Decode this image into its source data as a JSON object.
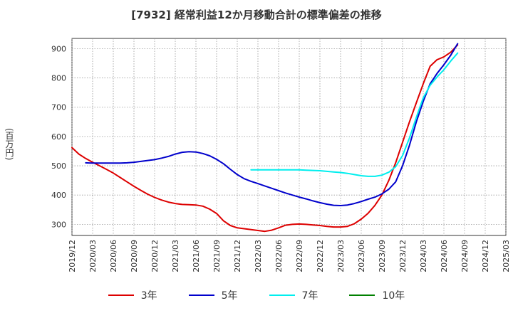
{
  "chart_data": {
    "type": "line",
    "title": "[7932]  経常利益12か月移動合計の標準偏差の推移",
    "ylabel": "(百万円)",
    "xlabel": "",
    "ylim": [
      262,
      935
    ],
    "yticks": [
      300,
      400,
      500,
      600,
      700,
      800,
      900
    ],
    "xticks": [
      "2019/12",
      "2020/03",
      "2020/06",
      "2020/09",
      "2020/12",
      "2021/03",
      "2021/06",
      "2021/09",
      "2021/12",
      "2022/03",
      "2022/06",
      "2022/09",
      "2022/12",
      "2023/03",
      "2023/06",
      "2023/09",
      "2023/12",
      "2024/03",
      "2024/06",
      "2024/09",
      "2024/12",
      "2025/03"
    ],
    "grid": true,
    "legend_position": "bottom",
    "series": [
      {
        "name": "3年",
        "color": "#dd0000",
        "start": "2019/12",
        "values": [
          562,
          540,
          525,
          512,
          500,
          488,
          475,
          460,
          445,
          430,
          416,
          403,
          392,
          383,
          376,
          371,
          368,
          367,
          366,
          362,
          352,
          337,
          312,
          296,
          288,
          285,
          282,
          279,
          276,
          280,
          288,
          297,
          300,
          301,
          300,
          298,
          296,
          293,
          291,
          291,
          293,
          302,
          318,
          338,
          365,
          400,
          450,
          510,
          580,
          650,
          715,
          780,
          840,
          862,
          872,
          888,
          913
        ]
      },
      {
        "name": "5年",
        "color": "#0000cc",
        "start": "2020/02",
        "values": [
          510,
          509,
          509,
          509,
          509,
          509,
          510,
          512,
          515,
          518,
          521,
          526,
          532,
          540,
          546,
          548,
          547,
          542,
          534,
          522,
          507,
          488,
          470,
          456,
          447,
          439,
          431,
          423,
          415,
          407,
          400,
          393,
          387,
          380,
          374,
          369,
          365,
          364,
          366,
          371,
          378,
          386,
          393,
          404,
          420,
          445,
          500,
          570,
          650,
          720,
          780,
          815,
          845,
          878,
          917
        ]
      },
      {
        "name": "7年",
        "color": "#00eeee",
        "start": "2022/02",
        "values": [
          486,
          486,
          486,
          486,
          486,
          486,
          486,
          486,
          485,
          484,
          483,
          481,
          479,
          477,
          474,
          470,
          466,
          464,
          464,
          468,
          478,
          497,
          535,
          595,
          665,
          732,
          775,
          803,
          828,
          858,
          885
        ]
      },
      {
        "name": "10年",
        "color": "#008000",
        "start": "2019/12",
        "values": []
      }
    ]
  }
}
